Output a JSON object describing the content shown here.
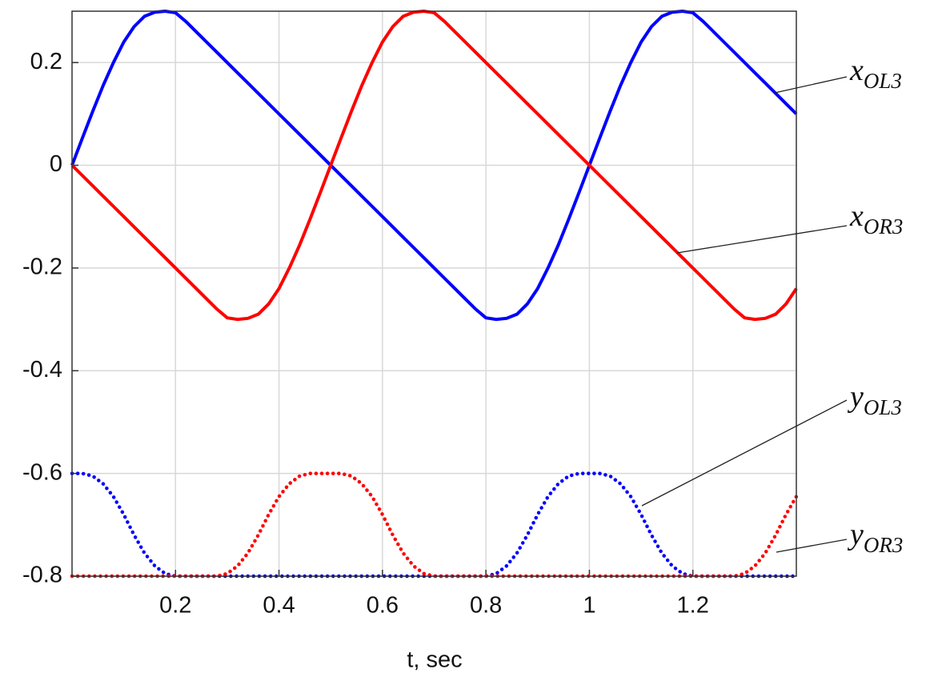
{
  "chart_data": {
    "type": "line",
    "x_label": "t, sec",
    "x": [
      0,
      0.02,
      0.04,
      0.06,
      0.08,
      0.1,
      0.12,
      0.14,
      0.16,
      0.18,
      0.2,
      0.22,
      0.24,
      0.26,
      0.28,
      0.3,
      0.32,
      0.34,
      0.36,
      0.38,
      0.4,
      0.42,
      0.44,
      0.46,
      0.48,
      0.5,
      0.52,
      0.54,
      0.56,
      0.58,
      0.6,
      0.62,
      0.64,
      0.66,
      0.68,
      0.7,
      0.72,
      0.74,
      0.76,
      0.78,
      0.8,
      0.82,
      0.84,
      0.86,
      0.88,
      0.9,
      0.92,
      0.94,
      0.96,
      0.98,
      1,
      1.02,
      1.04,
      1.06,
      1.08,
      1.1,
      1.12,
      1.14,
      1.16,
      1.18,
      1.2,
      1.22,
      1.24,
      1.26,
      1.28,
      1.3,
      1.32,
      1.34,
      1.36,
      1.38,
      1.4
    ],
    "series": [
      {
        "symbol": "x",
        "subscript": "OL3",
        "color": "#0000ff",
        "style": "solid",
        "values": [
          0,
          0.053,
          0.105,
          0.155,
          0.2,
          0.24,
          0.27,
          0.29,
          0.298,
          0.3,
          0.297,
          0.28,
          0.26,
          0.24,
          0.22,
          0.2,
          0.18,
          0.16,
          0.14,
          0.12,
          0.1,
          0.08,
          0.06,
          0.04,
          0.02,
          0,
          -0.02,
          -0.04,
          -0.06,
          -0.08,
          -0.1,
          -0.12,
          -0.14,
          -0.16,
          -0.18,
          -0.2,
          -0.22,
          -0.24,
          -0.26,
          -0.28,
          -0.297,
          -0.3,
          -0.298,
          -0.29,
          -0.27,
          -0.24,
          -0.2,
          -0.155,
          -0.105,
          -0.053,
          0,
          0.053,
          0.105,
          0.155,
          0.2,
          0.24,
          0.27,
          0.29,
          0.298,
          0.3,
          0.297,
          0.28,
          0.26,
          0.24,
          0.22,
          0.2,
          0.18,
          0.16,
          0.14,
          0.12,
          0.1
        ]
      },
      {
        "symbol": "x",
        "subscript": "OR3",
        "color": "#ff0000",
        "style": "solid",
        "values": [
          0,
          -0.02,
          -0.04,
          -0.06,
          -0.08,
          -0.1,
          -0.12,
          -0.14,
          -0.16,
          -0.18,
          -0.2,
          -0.22,
          -0.24,
          -0.26,
          -0.28,
          -0.297,
          -0.3,
          -0.298,
          -0.29,
          -0.27,
          -0.24,
          -0.2,
          -0.155,
          -0.105,
          -0.053,
          0,
          0.053,
          0.105,
          0.155,
          0.2,
          0.24,
          0.27,
          0.29,
          0.298,
          0.3,
          0.297,
          0.28,
          0.26,
          0.24,
          0.22,
          0.2,
          0.18,
          0.16,
          0.14,
          0.12,
          0.1,
          0.08,
          0.06,
          0.04,
          0.02,
          0,
          -0.02,
          -0.04,
          -0.06,
          -0.08,
          -0.1,
          -0.12,
          -0.14,
          -0.16,
          -0.18,
          -0.2,
          -0.22,
          -0.24,
          -0.26,
          -0.28,
          -0.297,
          -0.3,
          -0.298,
          -0.29,
          -0.27,
          -0.24
        ]
      },
      {
        "symbol": "y",
        "subscript": "OL3",
        "color": "#0000ff",
        "style": "dotted",
        "values": [
          -0.6,
          -0.6,
          -0.605,
          -0.62,
          -0.645,
          -0.68,
          -0.72,
          -0.755,
          -0.78,
          -0.795,
          -0.8,
          -0.8,
          -0.8,
          -0.8,
          -0.8,
          -0.8,
          -0.8,
          -0.8,
          -0.8,
          -0.8,
          -0.8,
          -0.8,
          -0.8,
          -0.8,
          -0.8,
          -0.8,
          -0.8,
          -0.8,
          -0.8,
          -0.8,
          -0.8,
          -0.8,
          -0.8,
          -0.8,
          -0.8,
          -0.8,
          -0.8,
          -0.8,
          -0.8,
          -0.8,
          -0.8,
          -0.795,
          -0.78,
          -0.755,
          -0.72,
          -0.68,
          -0.645,
          -0.62,
          -0.605,
          -0.6,
          -0.6,
          -0.6,
          -0.605,
          -0.62,
          -0.645,
          -0.68,
          -0.72,
          -0.755,
          -0.78,
          -0.795,
          -0.8,
          -0.8,
          -0.8,
          -0.8,
          -0.8,
          -0.8,
          -0.8,
          -0.8,
          -0.8,
          -0.8,
          -0.8
        ]
      },
      {
        "symbol": "y",
        "subscript": "OR3",
        "color": "#ff0000",
        "style": "dotted",
        "values": [
          -0.8,
          -0.8,
          -0.8,
          -0.8,
          -0.8,
          -0.8,
          -0.8,
          -0.8,
          -0.8,
          -0.8,
          -0.8,
          -0.8,
          -0.8,
          -0.8,
          -0.8,
          -0.795,
          -0.78,
          -0.755,
          -0.72,
          -0.68,
          -0.645,
          -0.62,
          -0.605,
          -0.6,
          -0.6,
          -0.6,
          -0.6,
          -0.605,
          -0.62,
          -0.645,
          -0.68,
          -0.72,
          -0.755,
          -0.78,
          -0.795,
          -0.8,
          -0.8,
          -0.8,
          -0.8,
          -0.8,
          -0.8,
          -0.8,
          -0.8,
          -0.8,
          -0.8,
          -0.8,
          -0.8,
          -0.8,
          -0.8,
          -0.8,
          -0.8,
          -0.8,
          -0.8,
          -0.8,
          -0.8,
          -0.8,
          -0.8,
          -0.8,
          -0.8,
          -0.8,
          -0.8,
          -0.8,
          -0.8,
          -0.8,
          -0.8,
          -0.795,
          -0.78,
          -0.755,
          -0.72,
          -0.68,
          -0.645
        ]
      }
    ],
    "xlim": [
      0,
      1.4
    ],
    "xticks": [
      0.2,
      0.4,
      0.6,
      0.8,
      1,
      1.2
    ],
    "ylim": [
      -0.8,
      0.3
    ],
    "yticks": [
      -0.8,
      -0.6,
      -0.4,
      -0.2,
      0,
      0.2
    ],
    "grid": true
  }
}
